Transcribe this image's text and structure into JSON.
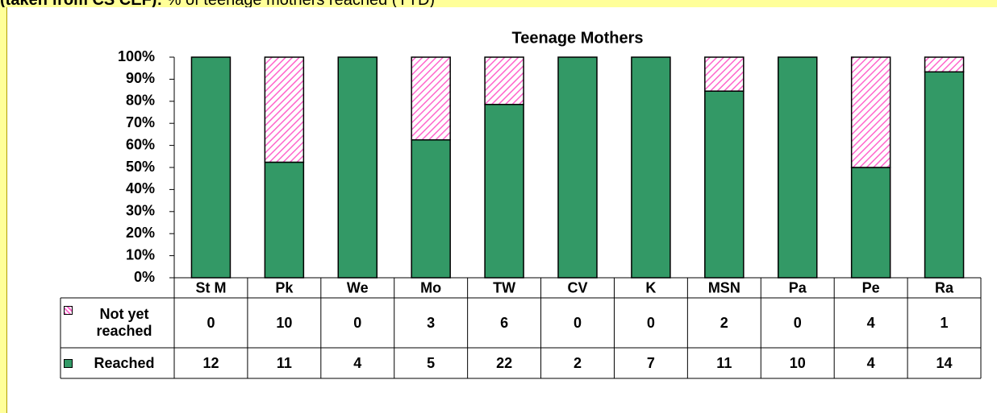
{
  "header": {
    "bold": "(taken from CS CEF):",
    "text": "% of teenage mothers reached (YTD)"
  },
  "chart_data": {
    "type": "stacked_percent_bar",
    "title": "Teenage Mothers",
    "categories": [
      "St M",
      "Pk",
      "We",
      "Mo",
      "TW",
      "CV",
      "K",
      "MSN",
      "Pa",
      "Pe",
      "Ra"
    ],
    "series": [
      {
        "name": "Reached",
        "color": "#339966",
        "values": [
          12,
          11,
          4,
          5,
          22,
          2,
          7,
          11,
          10,
          4,
          14
        ]
      },
      {
        "name": "Not yet reached",
        "color": "#ff66cc",
        "pattern": "hatch",
        "values": [
          0,
          10,
          0,
          3,
          6,
          0,
          0,
          2,
          0,
          4,
          1
        ]
      }
    ],
    "ylim": [
      0,
      100
    ],
    "yticks": [
      {
        "value": 0,
        "label": "0%"
      },
      {
        "value": 10,
        "label": "10%"
      },
      {
        "value": 20,
        "label": "20%"
      },
      {
        "value": 30,
        "label": "30%"
      },
      {
        "value": 40,
        "label": "40%"
      },
      {
        "value": 50,
        "label": "50%"
      },
      {
        "value": 60,
        "label": "60%"
      },
      {
        "value": 70,
        "label": "70%"
      },
      {
        "value": 80,
        "label": "80%"
      },
      {
        "value": 90,
        "label": "90%"
      },
      {
        "value": 100,
        "label": "100%"
      }
    ],
    "data_table": true
  }
}
